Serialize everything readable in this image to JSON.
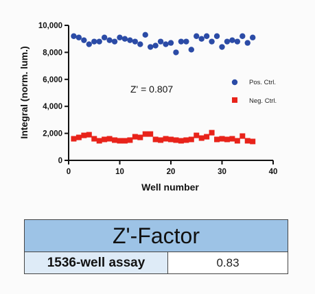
{
  "chart_data": {
    "type": "scatter",
    "xlabel": "Well number",
    "ylabel": "Integral (norm. lum.)",
    "xlim": [
      0,
      40
    ],
    "ylim": [
      0,
      10000
    ],
    "x_ticks": [
      0,
      10,
      20,
      30,
      40
    ],
    "y_ticks": [
      0,
      2000,
      4000,
      6000,
      8000,
      10000
    ],
    "x_tick_labels": [
      "0",
      "10",
      "20",
      "30",
      "40"
    ],
    "y_tick_labels": [
      "0",
      "2,000",
      "4,000",
      "6,000",
      "8,000",
      "10,000"
    ],
    "annotation": "Z' = 0.807",
    "legend_position": "right",
    "series": [
      {
        "name": "Pos. Ctrl.",
        "marker": "circle",
        "color": "#2b4ba6",
        "x": [
          1,
          2,
          3,
          4,
          5,
          6,
          7,
          8,
          9,
          10,
          11,
          12,
          13,
          14,
          15,
          16,
          17,
          18,
          19,
          20,
          21,
          22,
          23,
          24,
          25,
          26,
          27,
          28,
          29,
          30,
          31,
          32,
          33,
          34,
          35,
          36
        ],
        "y": [
          9200,
          9100,
          8900,
          8600,
          8800,
          8800,
          9100,
          8900,
          8800,
          9100,
          9000,
          8900,
          8800,
          8600,
          9300,
          8400,
          8500,
          8800,
          8600,
          8700,
          8000,
          8800,
          8800,
          8200,
          9200,
          9000,
          9200,
          8800,
          9200,
          8400,
          8800,
          8900,
          8800,
          9200,
          8700,
          9100
        ]
      },
      {
        "name": "Neg. Ctrl.",
        "marker": "square",
        "color": "#e8231a",
        "x": [
          1,
          2,
          3,
          4,
          5,
          6,
          7,
          8,
          9,
          10,
          11,
          12,
          13,
          14,
          15,
          16,
          17,
          18,
          19,
          20,
          21,
          22,
          23,
          24,
          25,
          26,
          27,
          28,
          29,
          30,
          31,
          32,
          33,
          34,
          35,
          36
        ],
        "y": [
          1600,
          1700,
          1850,
          1900,
          1600,
          1450,
          1550,
          1600,
          1500,
          1450,
          1450,
          1500,
          1750,
          1700,
          1950,
          1950,
          1550,
          1500,
          1600,
          1550,
          1500,
          1450,
          1500,
          1550,
          1850,
          1650,
          1750,
          2050,
          1550,
          1600,
          1550,
          1600,
          1450,
          1800,
          1450,
          1400
        ]
      }
    ]
  },
  "table": {
    "header": "Z'-Factor",
    "row_label": "1536-well assay",
    "row_value": "0.83"
  }
}
